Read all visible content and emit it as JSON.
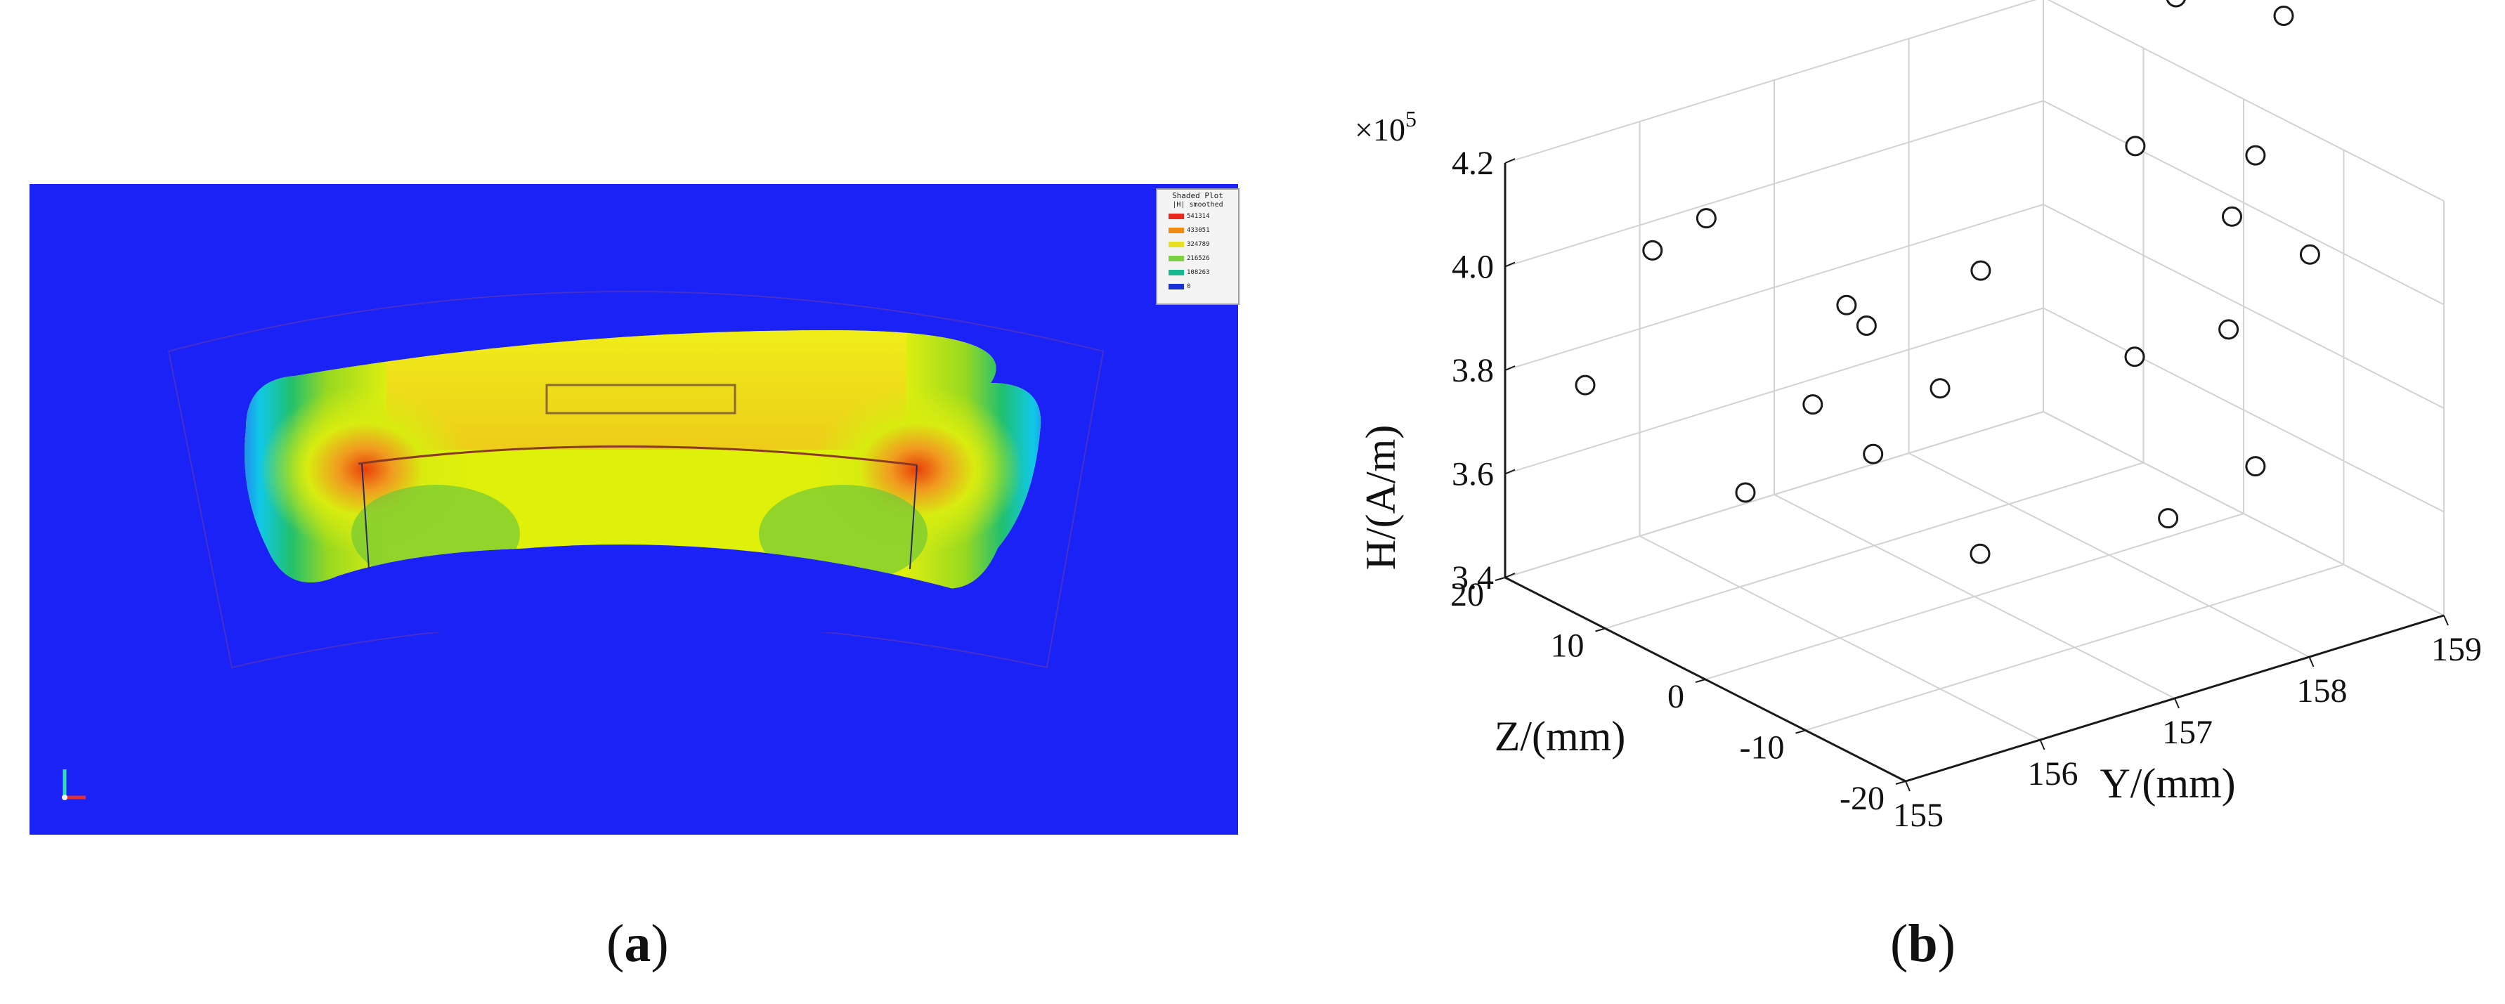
{
  "panel_a": {
    "caption_open": "(",
    "caption_letter": "a",
    "caption_close": ")",
    "legend": {
      "title": "Shaded Plot",
      "subtitle": "|H| smoothed",
      "values": [
        "541314",
        "433051",
        "324789",
        "216526",
        "108263",
        "0"
      ],
      "colors": [
        "#e8281a",
        "#f08a10",
        "#e8e020",
        "#7ad040",
        "#18b890",
        "#1830d8"
      ]
    },
    "colors": {
      "background": "#1b22f5",
      "magnet_fill": "#dff00a",
      "peak": "#e0401a"
    }
  },
  "panel_b": {
    "caption_open": "(",
    "caption_letter": "b",
    "caption_close": ")"
  },
  "chart_data": {
    "type": "scatter",
    "projection": "3d",
    "xlabel": "Y/(mm)",
    "ylabel": "Z/(mm)",
    "zlabel": "H/(A/m)",
    "z_multiplier": "×10",
    "z_exponent": "5",
    "x_ticks": [
      "155",
      "156",
      "157",
      "158",
      "159"
    ],
    "y_ticks": [
      "-20",
      "-10",
      "0",
      "10",
      "20"
    ],
    "z_ticks": [
      "3.4",
      "3.6",
      "3.8",
      "4.0",
      "4.2"
    ],
    "xlim": [
      155,
      159
    ],
    "ylim": [
      -20,
      20
    ],
    "zlim": [
      3.4,
      4.2
    ],
    "grid": true,
    "marker": "open-circle",
    "points": [
      {
        "y": 155.0,
        "z": 12,
        "h": 3.85
      },
      {
        "y": 155.0,
        "z": -4,
        "h": 3.8
      },
      {
        "y": 155.5,
        "z": 12,
        "h": 4.07
      },
      {
        "y": 155.5,
        "z": -4,
        "h": 3.93
      },
      {
        "y": 155.9,
        "z": 12,
        "h": 4.1
      },
      {
        "y": 155.9,
        "z": -2,
        "h": 4.07
      },
      {
        "y": 155.8,
        "z": -6,
        "h": 3.83
      },
      {
        "y": 155.9,
        "z": -4,
        "h": 4.05
      },
      {
        "y": 156.0,
        "z": -10,
        "h": 3.98
      },
      {
        "y": 156.0,
        "z": -14,
        "h": 3.7
      },
      {
        "y": 156.6,
        "z": -6,
        "h": 4.12
      },
      {
        "y": 157.0,
        "z": -16,
        "h": 4.02
      },
      {
        "y": 157.6,
        "z": -8,
        "h": 4.3
      },
      {
        "y": 157.4,
        "z": -20,
        "h": 4.08
      },
      {
        "y": 158.2,
        "z": -4,
        "h": 4.5
      },
      {
        "y": 157.1,
        "z": -18,
        "h": 3.72
      },
      {
        "y": 159.0,
        "z": -4,
        "h": 4.4
      },
      {
        "y": 157.6,
        "z": -20,
        "h": 4.4
      },
      {
        "y": 158.6,
        "z": -12,
        "h": 4.05
      },
      {
        "y": 157.6,
        "z": -20,
        "h": 3.8
      },
      {
        "y": 157.5,
        "z": -19,
        "h": 4.28
      }
    ]
  }
}
